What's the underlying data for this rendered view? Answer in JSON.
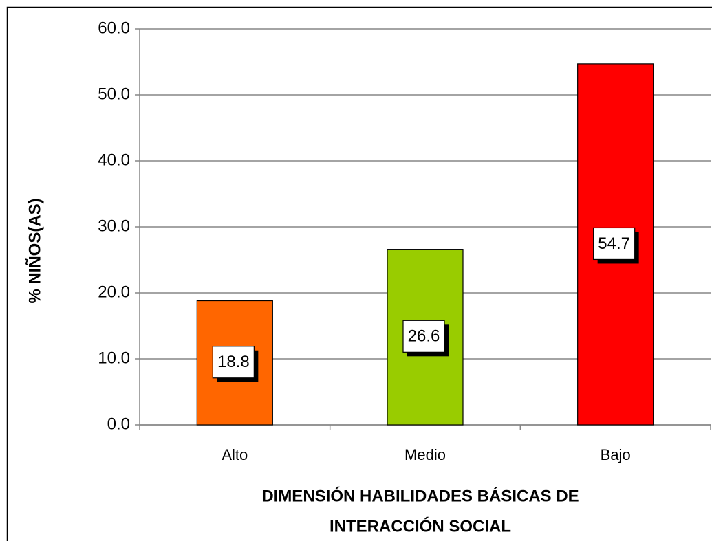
{
  "chart_data": {
    "type": "bar",
    "categories": [
      "Alto",
      "Medio",
      "Bajo"
    ],
    "values": [
      18.8,
      26.6,
      54.7
    ],
    "colors": [
      "#ff6600",
      "#99cc00",
      "#ff0000"
    ],
    "ylabel": "% NIÑOS(AS)",
    "xlabel": [
      "DIMENSIÓN HABILIDADES BÁSICAS DE",
      "INTERACCIÓN SOCIAL"
    ],
    "ylim": [
      0,
      60
    ],
    "yticks": [
      {
        "value": 0,
        "label": "0.0"
      },
      {
        "value": 10,
        "label": "10.0"
      },
      {
        "value": 20,
        "label": "20.0"
      },
      {
        "value": 30,
        "label": "30.0"
      },
      {
        "value": 40,
        "label": "40.0"
      },
      {
        "value": 50,
        "label": "50.0"
      },
      {
        "value": 60,
        "label": "60.0"
      }
    ],
    "grid": true
  }
}
